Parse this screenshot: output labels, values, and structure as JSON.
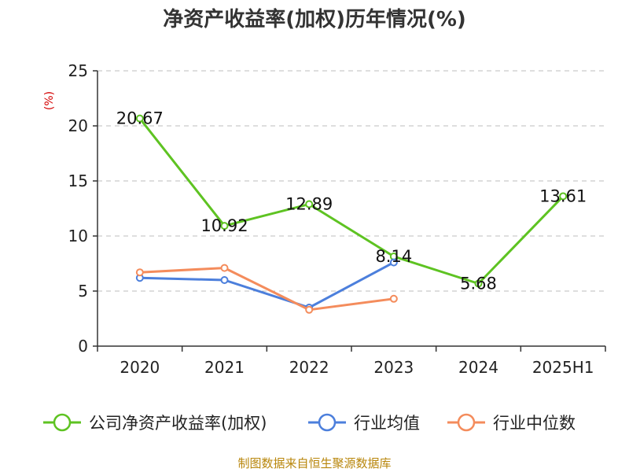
{
  "title": "净资产收益率(加权)历年情况(%)",
  "source": "制图数据来自恒生聚源数据库",
  "chart_data": {
    "type": "line",
    "title": "净资产收益率(加权)历年情况(%)",
    "ylabel": "(%)",
    "xlabel": "",
    "categories": [
      "2020",
      "2021",
      "2022",
      "2023",
      "2024",
      "2025H1"
    ],
    "ylim": [
      0,
      25
    ],
    "yticks": [
      0,
      5,
      10,
      15,
      20,
      25
    ],
    "grid": true,
    "legend_position": "bottom",
    "series": [
      {
        "name": "公司净资产收益率(加权)",
        "color": "#5ec322",
        "values": [
          20.67,
          10.92,
          12.89,
          8.14,
          5.68,
          13.61
        ],
        "labels": [
          "20.67",
          "10.92",
          "12.89",
          "8.14",
          "5.68",
          "13.61"
        ]
      },
      {
        "name": "行业均值",
        "color": "#4c7fdc",
        "values": [
          6.2,
          6.0,
          3.5,
          7.6,
          null,
          null
        ]
      },
      {
        "name": "行业中位数",
        "color": "#f48c5c",
        "values": [
          6.7,
          7.1,
          3.3,
          4.3,
          null,
          null
        ]
      }
    ]
  }
}
